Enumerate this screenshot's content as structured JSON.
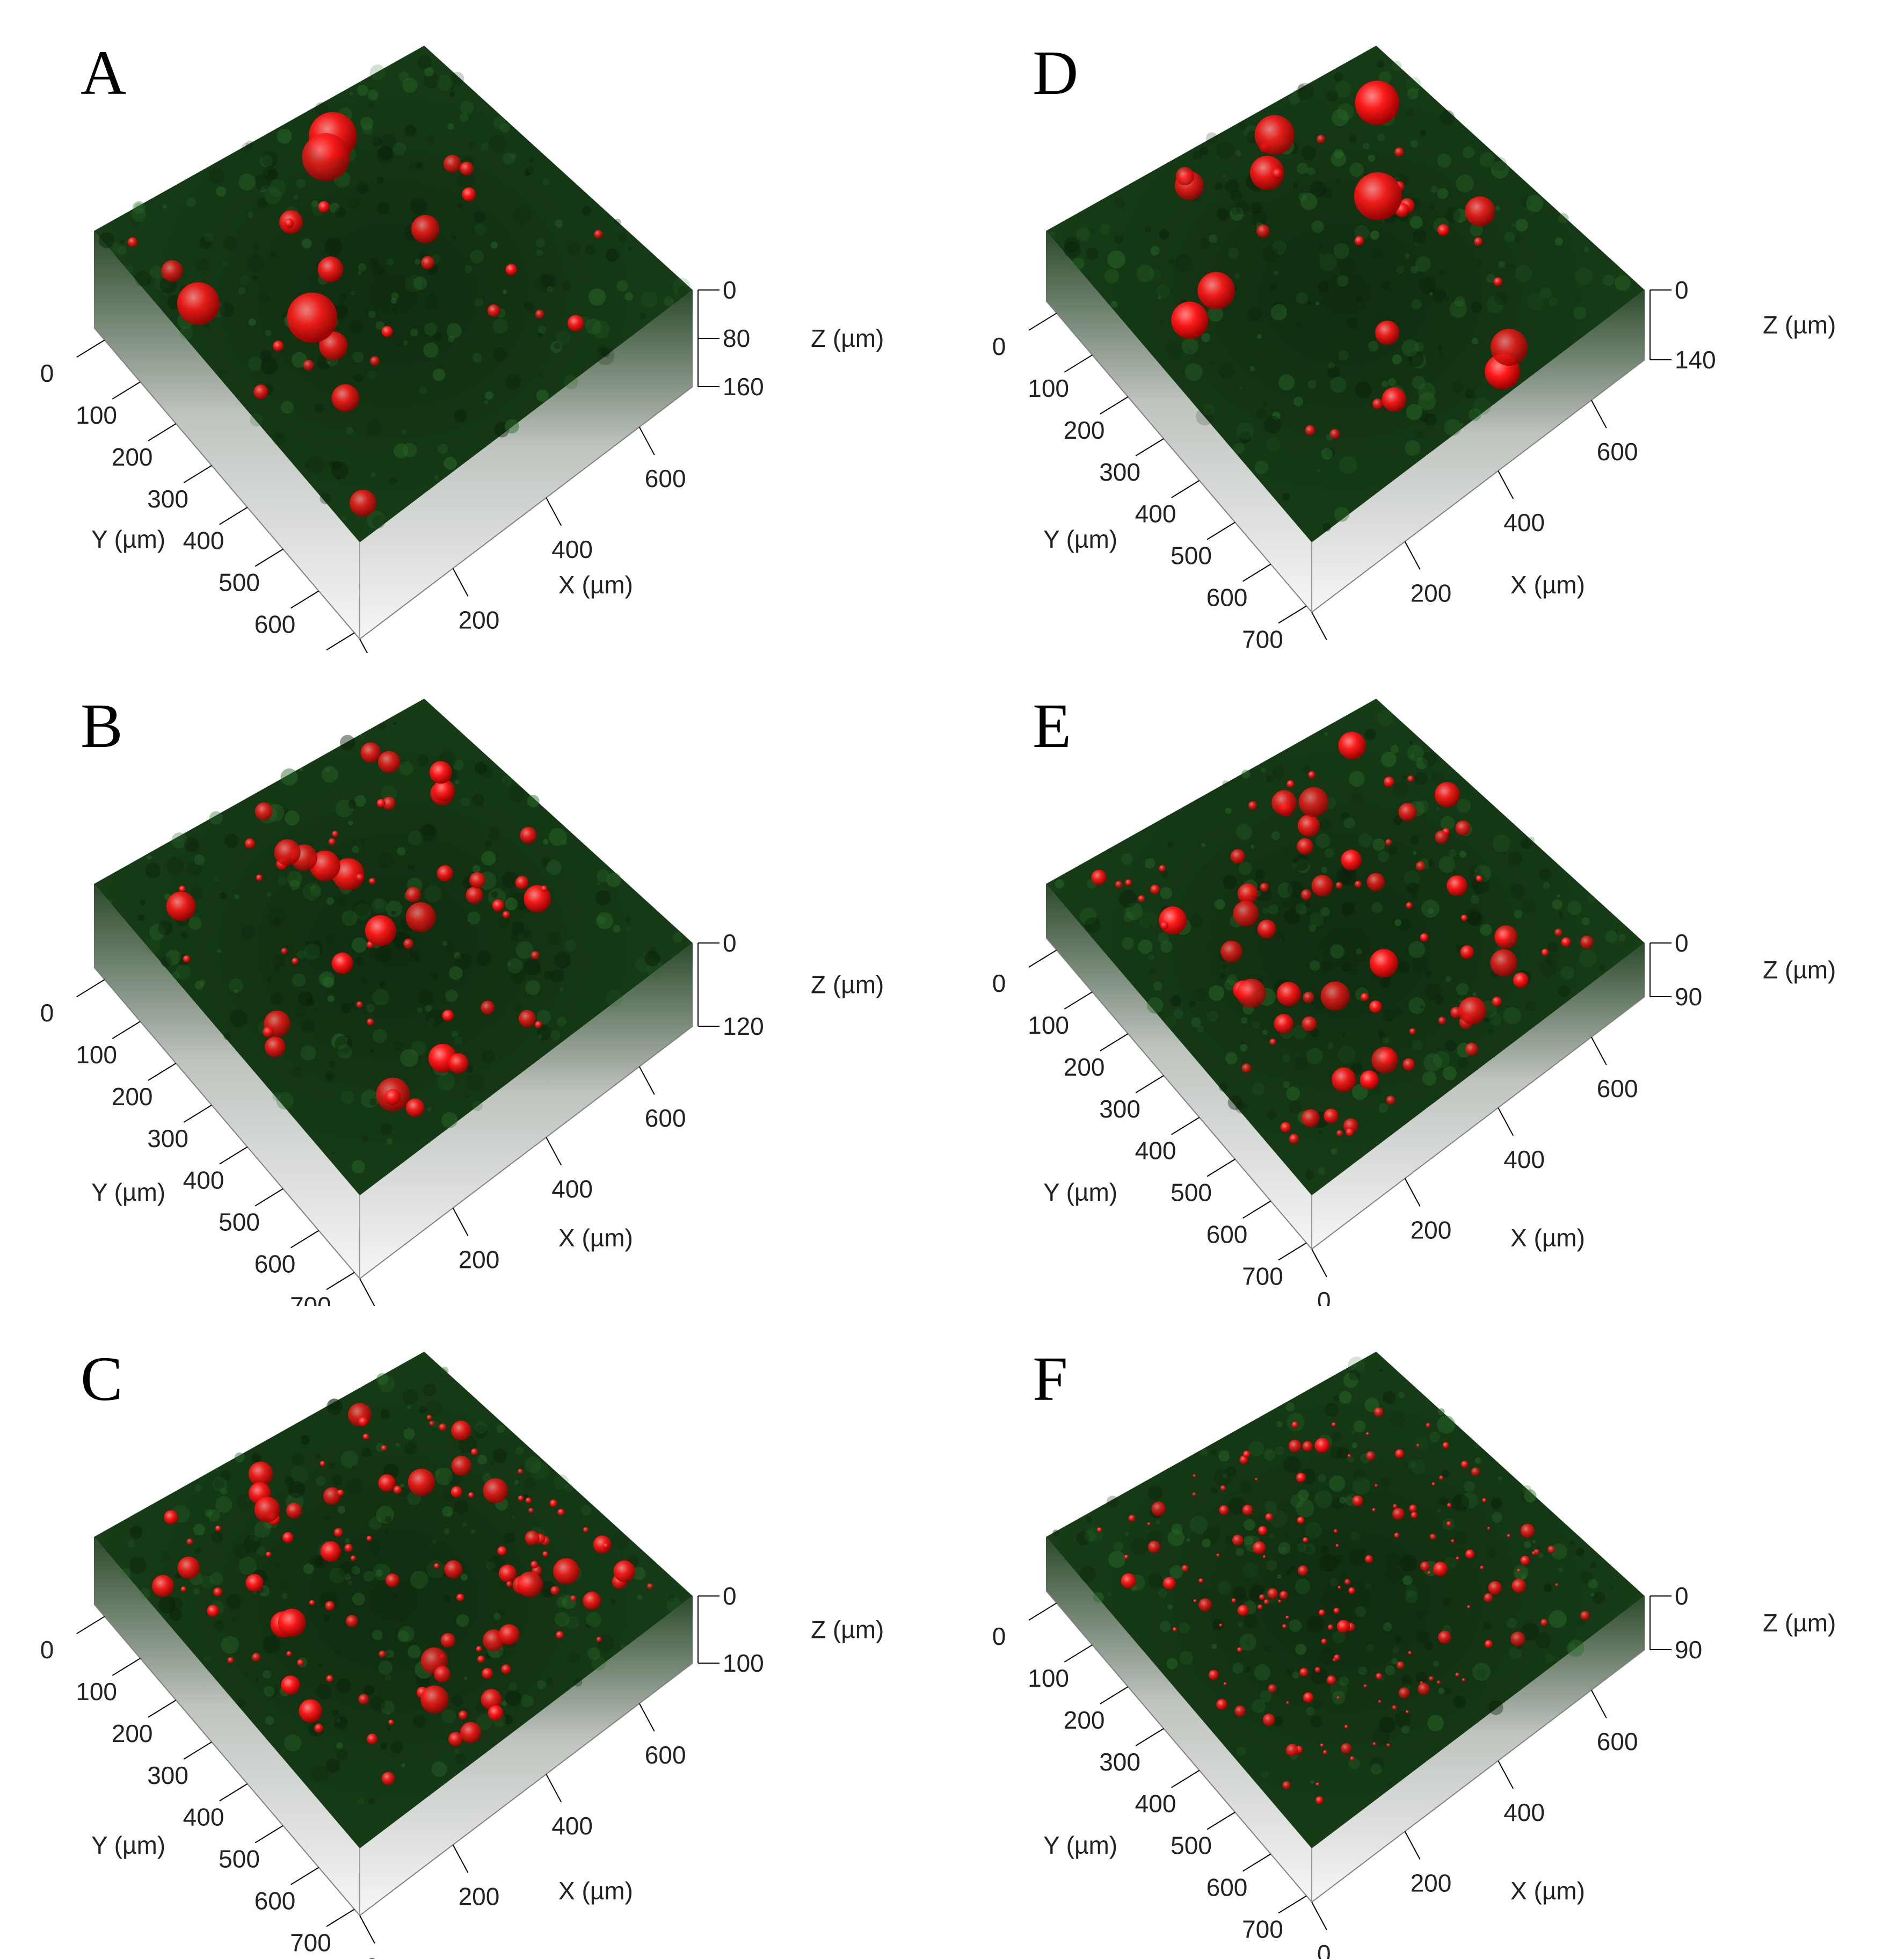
{
  "figure": {
    "colors": {
      "background": "#ffffff",
      "sample_green": "#163c16",
      "droplet_red": "#ff1a1a",
      "side_grey": "#e6e6e6",
      "axis": "#000000"
    },
    "x_axis": {
      "title": "X (µm)",
      "ticks": [
        "0",
        "200",
        "400",
        "600"
      ]
    },
    "y_axis": {
      "title": "Y (µm)",
      "ticks": [
        "0",
        "100",
        "200",
        "300",
        "400",
        "500",
        "600",
        "700"
      ]
    },
    "z_axis_title": "Z (µm)",
    "panels": [
      {
        "id": "A",
        "label": "A",
        "z_ticks": [
          "0",
          "80",
          "160"
        ],
        "droplets": "few-large"
      },
      {
        "id": "D",
        "label": "D",
        "z_ticks": [
          "0",
          "140"
        ],
        "droplets": "few-large"
      },
      {
        "id": "B",
        "label": "B",
        "z_ticks": [
          "0",
          "120"
        ],
        "droplets": "medium"
      },
      {
        "id": "E",
        "label": "E",
        "z_ticks": [
          "0",
          "90"
        ],
        "droplets": "many-medium"
      },
      {
        "id": "C",
        "label": "C",
        "z_ticks": [
          "0",
          "100"
        ],
        "droplets": "many-small"
      },
      {
        "id": "F",
        "label": "F",
        "z_ticks": [
          "0",
          "90"
        ],
        "droplets": "many-tiny"
      }
    ]
  }
}
